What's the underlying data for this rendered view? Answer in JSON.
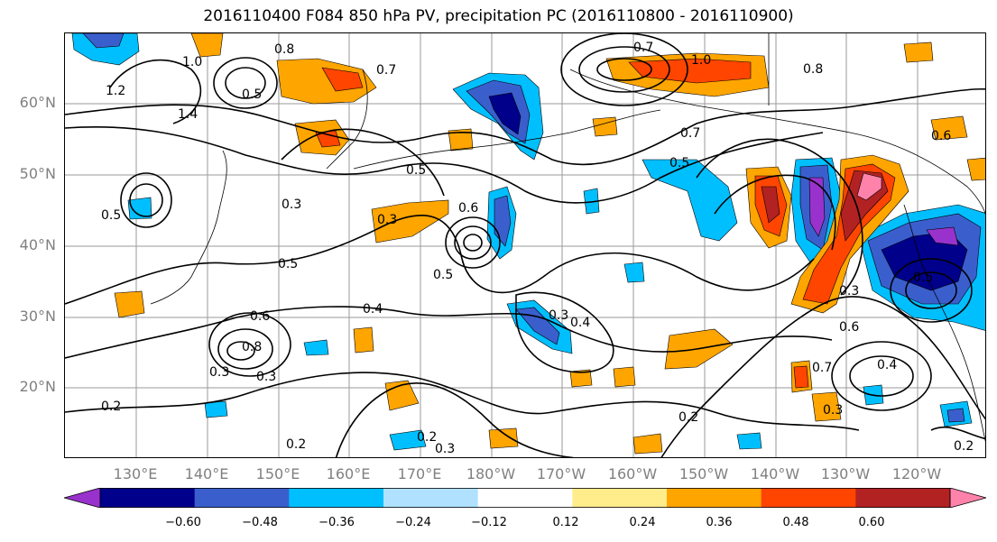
{
  "title": "2016110400 F084 850 hPa PV, precipitation PC (2016110800 - 2016110900)",
  "map": {
    "lat_labels": [
      "60°N",
      "50°N",
      "40°N",
      "30°N",
      "20°N"
    ],
    "lon_labels": [
      "130°E",
      "140°E",
      "150°E",
      "160°E",
      "170°E",
      "180°W",
      "170°W",
      "160°W",
      "150°W",
      "140°W",
      "130°W",
      "120°W"
    ],
    "contour_labels": [
      "0.8",
      "1.0",
      "1.2",
      "0.5",
      "0.7",
      "1.4",
      "1.0",
      "0.7",
      "0.8",
      "0.7",
      "0.5",
      "0.3",
      "0.3",
      "0.6",
      "0.5",
      "0.6",
      "0.5",
      "0.4",
      "0.3",
      "0.8",
      "0.4",
      "0.3",
      "0.5",
      "0.3",
      "0.7",
      "0.6",
      "0.3",
      "0.4",
      "0.2",
      "0.2",
      "0.2",
      "0.3",
      "0.2",
      "0.3",
      "0.2",
      "0.5",
      "0.5",
      "0.6"
    ]
  },
  "colorbar": {
    "tick_labels": [
      "−0.60",
      "−0.48",
      "−0.36",
      "−0.24",
      "−0.12",
      "0.12",
      "0.24",
      "0.36",
      "0.48",
      "0.60"
    ],
    "colors": [
      "#9932cc",
      "#00008b",
      "#3a5fcd",
      "#00bfff",
      "#b0e2ff",
      "#ffffff",
      "#ffec8b",
      "#ffa500",
      "#ff4500",
      "#b22222",
      "#ff82ab"
    ]
  }
}
